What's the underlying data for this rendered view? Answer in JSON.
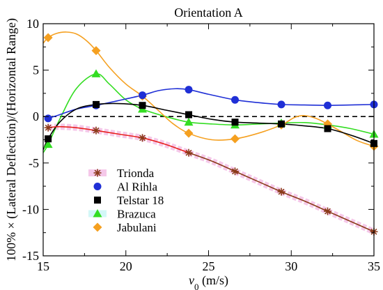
{
  "chart_data": {
    "type": "line",
    "title": "Orientation A",
    "xlabel_var": "v",
    "xlabel_sub": "0",
    "xlabel_unit": " (m/s)",
    "ylabel": "100% × (Lateral Deflection)/(Horizontal Range)",
    "xlim": [
      15,
      35
    ],
    "ylim": [
      -15,
      10
    ],
    "x_ticks": [
      15,
      20,
      25,
      30,
      35
    ],
    "y_ticks": [
      -15,
      -10,
      -5,
      0,
      5,
      10
    ],
    "grid": false,
    "reference_line": {
      "y": 0,
      "style": "dashed",
      "color": "#000000"
    },
    "legend_position": "lower-left",
    "series": [
      {
        "name": "Trionda",
        "marker": "asterisk",
        "color": "#8b3a1a",
        "line_color": "#e8211f",
        "line_color_2": "#8b3a1a",
        "band_color": "#f2b6e2",
        "x": [
          15.3,
          18.2,
          21.0,
          23.8,
          26.6,
          29.4,
          32.2,
          35.0
        ],
        "y": [
          -1.2,
          -1.5,
          -2.3,
          -3.9,
          -5.9,
          -8.1,
          -10.2,
          -12.4
        ],
        "curve_x": [
          15.3,
          15.8,
          16.2,
          17.0,
          18.2,
          19.6,
          21.0,
          22.4,
          23.8,
          25.2,
          26.6,
          28.0,
          29.4,
          30.8,
          32.2,
          33.6,
          35.0
        ],
        "curve_y": [
          -1.2,
          -1.1,
          -1.1,
          -1.2,
          -1.5,
          -1.9,
          -2.3,
          -3.0,
          -3.9,
          -4.8,
          -5.9,
          -7.0,
          -8.1,
          -9.1,
          -10.2,
          -11.3,
          -12.4
        ]
      },
      {
        "name": "Al Rihla",
        "marker": "circle",
        "color": "#1f2fd6",
        "x": [
          15.3,
          18.2,
          21.0,
          23.8,
          26.6,
          29.4,
          32.2,
          35.0
        ],
        "y": [
          -0.2,
          1.2,
          2.3,
          2.9,
          1.8,
          1.3,
          1.2,
          1.3
        ],
        "curve_x": [
          15.3,
          16.0,
          17.0,
          18.2,
          19.5,
          21.0,
          22.0,
          23.0,
          23.8,
          25.0,
          26.6,
          28.0,
          29.4,
          30.8,
          32.2,
          33.6,
          35.0
        ],
        "curve_y": [
          -0.2,
          0.2,
          0.8,
          1.2,
          1.7,
          2.3,
          2.8,
          3.0,
          2.9,
          2.4,
          1.8,
          1.5,
          1.3,
          1.25,
          1.2,
          1.25,
          1.3
        ]
      },
      {
        "name": "Telstar 18",
        "marker": "square",
        "color": "#000000",
        "x": [
          15.3,
          18.2,
          21.0,
          23.8,
          26.6,
          29.4,
          32.2,
          35.0
        ],
        "y": [
          -2.4,
          1.3,
          1.2,
          0.2,
          -0.6,
          -0.8,
          -1.3,
          -2.9
        ],
        "curve_x": [
          15.0,
          15.3,
          16.0,
          17.0,
          18.2,
          19.5,
          21.0,
          22.4,
          23.8,
          25.2,
          26.6,
          28.0,
          29.4,
          30.8,
          32.2,
          33.6,
          35.0
        ],
        "curve_y": [
          -3.6,
          -2.4,
          -0.6,
          0.8,
          1.3,
          1.4,
          1.2,
          0.7,
          0.2,
          -0.3,
          -0.6,
          -0.7,
          -0.8,
          -1.0,
          -1.3,
          -2.0,
          -2.9
        ]
      },
      {
        "name": "Brazuca",
        "marker": "triangle",
        "color": "#33dd22",
        "x": [
          15.3,
          18.2,
          21.0,
          23.8,
          26.6,
          29.4,
          32.2,
          35.0
        ],
        "y": [
          -3.0,
          4.6,
          0.8,
          -0.6,
          -0.9,
          -0.7,
          -0.9,
          -1.9
        ],
        "curve_x": [
          15.0,
          15.3,
          16.0,
          17.0,
          18.2,
          19.0,
          20.0,
          21.0,
          22.4,
          23.8,
          25.2,
          26.6,
          28.0,
          29.4,
          30.8,
          32.2,
          33.6,
          35.0
        ],
        "curve_y": [
          -3.9,
          -3.0,
          -0.3,
          3.0,
          4.6,
          3.5,
          1.8,
          0.8,
          0.0,
          -0.6,
          -0.8,
          -0.9,
          -0.8,
          -0.7,
          -0.65,
          -0.9,
          -1.3,
          -1.9
        ]
      },
      {
        "name": "Jabulani",
        "marker": "diamond",
        "color": "#f5a020",
        "x": [
          15.3,
          18.2,
          21.0,
          23.8,
          26.6,
          29.4,
          32.2,
          35.0
        ],
        "y": [
          8.5,
          7.1,
          2.2,
          -1.8,
          -2.4,
          -0.9,
          -0.8,
          -3.2
        ],
        "curve_x": [
          15.0,
          15.3,
          15.8,
          16.4,
          17.0,
          17.6,
          18.2,
          19.0,
          20.0,
          21.0,
          22.0,
          22.8,
          23.8,
          25.2,
          26.6,
          28.0,
          29.4,
          30.2,
          30.8,
          31.5,
          32.2,
          33.0,
          34.0,
          35.0
        ],
        "curve_y": [
          7.9,
          8.5,
          8.95,
          9.1,
          8.9,
          8.2,
          7.1,
          5.3,
          3.5,
          2.2,
          0.6,
          -0.7,
          -1.8,
          -2.5,
          -2.4,
          -1.8,
          -0.9,
          -0.1,
          0.1,
          -0.2,
          -0.8,
          -1.6,
          -2.6,
          -3.2
        ]
      }
    ]
  }
}
